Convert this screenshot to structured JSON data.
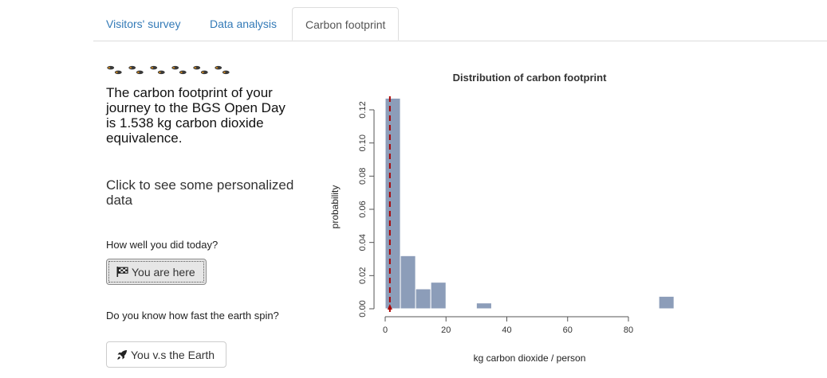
{
  "tabs": [
    {
      "label": "Visitors' survey"
    },
    {
      "label": "Data analysis"
    },
    {
      "label": "Carbon footprint"
    }
  ],
  "left": {
    "footprint_icon": "footprints-icon",
    "footprint_count": 6,
    "result_text": "The carbon footprint of your journey to the BGS Open Day is 1.538 kg carbon dioxide equivalence.",
    "click_text": "Click to see some personalized data",
    "question1": "How well you did today?",
    "button1": {
      "label": "You are here",
      "icon": "checkered-flag-icon"
    },
    "question2": "Do you know how fast the earth spin?",
    "button2": {
      "label": "You v.s the Earth",
      "icon": "rocket-icon"
    }
  },
  "colors": {
    "bar": "#8c9db9",
    "marker": "#aa0000",
    "tab_link": "#337ab7"
  },
  "chart_data": {
    "type": "bar",
    "title": "Distribution of carbon footprint",
    "xlabel": "kg carbon dioxide / person",
    "ylabel": "probability",
    "xlim": [
      0,
      80
    ],
    "ylim": [
      0,
      0.12
    ],
    "xticks": [
      0,
      20,
      40,
      60,
      80
    ],
    "yticks": [
      "0.00",
      "0.02",
      "0.04",
      "0.06",
      "0.08",
      "0.10",
      "0.12"
    ],
    "bin_width": 5,
    "bins": [
      {
        "x0": 0,
        "x1": 5,
        "value": 0.127
      },
      {
        "x0": 5,
        "x1": 10,
        "value": 0.032
      },
      {
        "x0": 10,
        "x1": 15,
        "value": 0.012
      },
      {
        "x0": 15,
        "x1": 20,
        "value": 0.016
      },
      {
        "x0": 30,
        "x1": 35,
        "value": 0.0035
      },
      {
        "x0": 90,
        "x1": 95,
        "value": 0.0075
      }
    ],
    "marker_value": 1.538
  }
}
